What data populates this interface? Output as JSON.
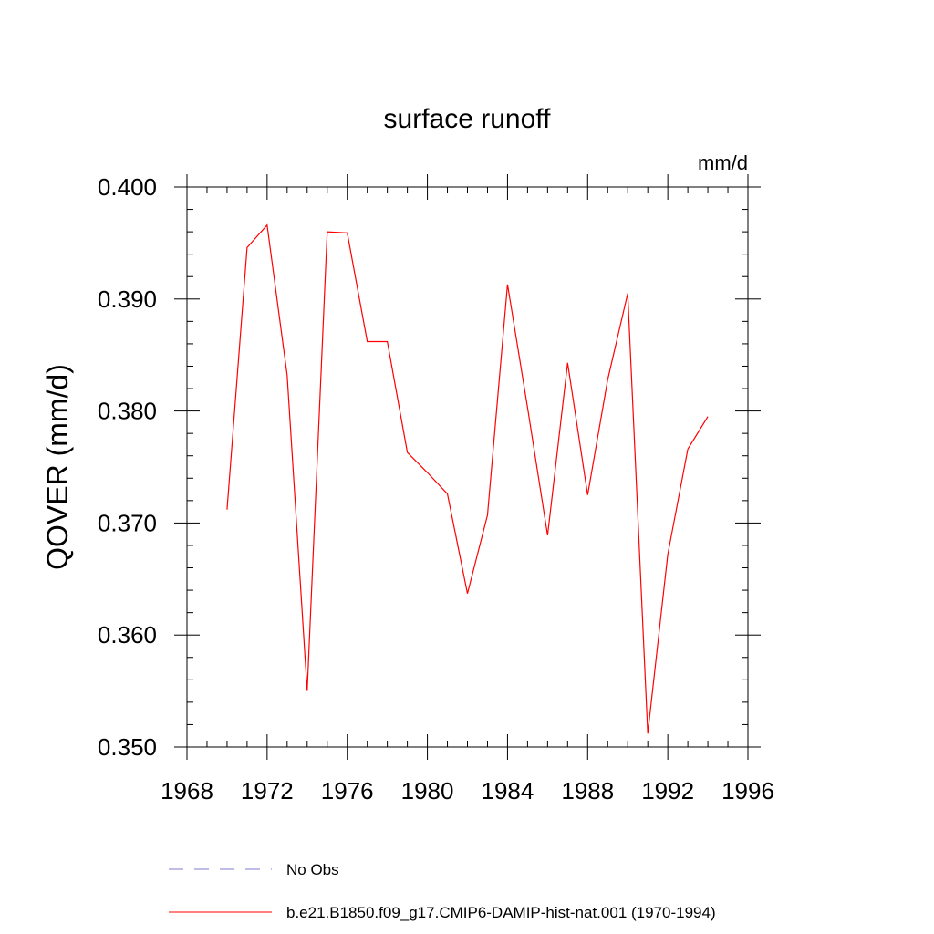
{
  "chart_data": {
    "type": "line",
    "title": "surface runoff",
    "units_label": "mm/d",
    "ylabel": "QOVER  (mm/d)",
    "xlabel": "",
    "xlim": [
      1968,
      1996
    ],
    "ylim": [
      0.35,
      0.4
    ],
    "x_ticks": [
      "1968",
      "1972",
      "1976",
      "1980",
      "1984",
      "1988",
      "1992",
      "1996"
    ],
    "y_ticks": [
      "0.350",
      "0.360",
      "0.370",
      "0.380",
      "0.390",
      "0.400"
    ],
    "grid": false,
    "legend_position": "bottom",
    "series": [
      {
        "name": "No Obs",
        "color": "#7b7bd0",
        "style": "dashed",
        "x": [],
        "values": []
      },
      {
        "name": "b.e21.B1850.f09_g17.CMIP6-DAMIP-hist-nat.001 (1970-1994)",
        "color": "#ff0000",
        "style": "solid",
        "x": [
          1970,
          1971,
          1972,
          1973,
          1974,
          1975,
          1976,
          1977,
          1978,
          1979,
          1980,
          1981,
          1982,
          1983,
          1984,
          1985,
          1986,
          1987,
          1988,
          1989,
          1990,
          1991,
          1992,
          1993,
          1994
        ],
        "values": [
          0.3712,
          0.3946,
          0.3966,
          0.3832,
          0.355,
          0.396,
          0.3959,
          0.3862,
          0.3862,
          0.3763,
          0.3745,
          0.3726,
          0.3637,
          0.3707,
          0.3913,
          0.3803,
          0.3689,
          0.3843,
          0.3725,
          0.3828,
          0.3905,
          0.3512,
          0.3672,
          0.3766,
          0.3795
        ]
      }
    ]
  }
}
